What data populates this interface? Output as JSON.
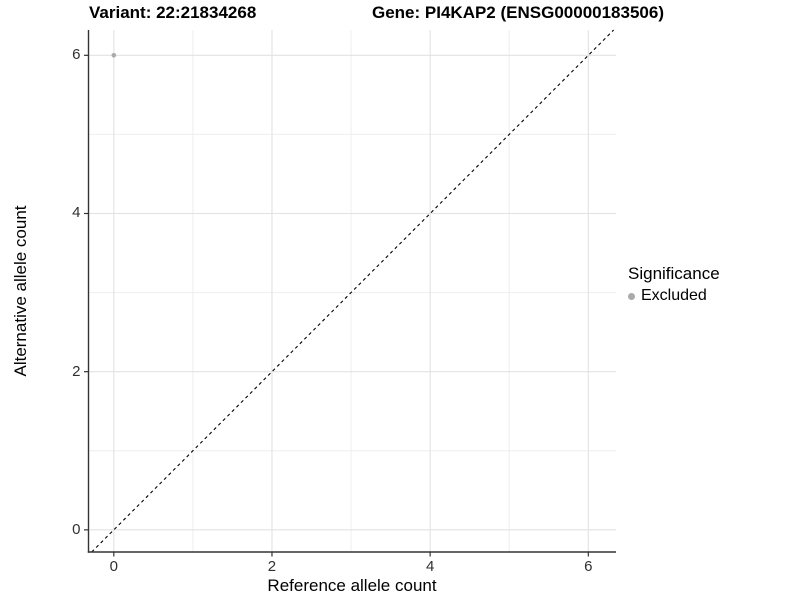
{
  "header": {
    "variant_title": "Variant: 22:21834268",
    "gene_title": "Gene: PI4KAP2 (ENSG00000183506)"
  },
  "chart_data": {
    "type": "scatter",
    "xlabel": "Reference allele count",
    "ylabel": "Alternative allele count",
    "xlim": [
      -0.32,
      6.35
    ],
    "ylim": [
      -0.28,
      6.32
    ],
    "xticks": [
      0,
      2,
      4,
      6
    ],
    "yticks": [
      0,
      2,
      4,
      6
    ],
    "xticks_minor": [
      1,
      3,
      5
    ],
    "yticks_minor": [
      1,
      3,
      5
    ],
    "grid": "major+minor",
    "series": [
      {
        "name": "Excluded",
        "color": "#aaaaaa",
        "points": [
          {
            "x": 0,
            "y": 6
          }
        ]
      }
    ],
    "reference_line": {
      "slope": 1,
      "intercept": 0,
      "linestyle": "dashed",
      "color": "#000000"
    },
    "legend": {
      "title": "Significance",
      "position": "right",
      "entries": [
        {
          "label": "Excluded",
          "color": "#aaaaaa",
          "marker": "circle"
        }
      ]
    }
  },
  "colors": {
    "background": "#ffffff",
    "grid_major": "#e2e2e2",
    "grid_minor": "#eeeeee",
    "axis_line": "#333333",
    "tick_text": "#303030",
    "text": "#000000"
  }
}
